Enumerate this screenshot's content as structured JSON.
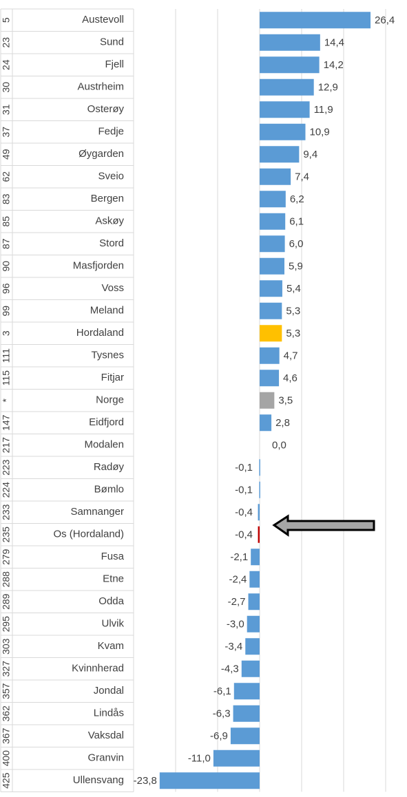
{
  "chart_data": {
    "type": "bar",
    "orientation": "horizontal",
    "ranks": [
      "5",
      "23",
      "24",
      "30",
      "31",
      "37",
      "49",
      "62",
      "83",
      "85",
      "87",
      "90",
      "96",
      "99",
      "3",
      "111",
      "115",
      "*",
      "147",
      "217",
      "223",
      "224",
      "233",
      "235",
      "279",
      "288",
      "289",
      "295",
      "303",
      "327",
      "357",
      "362",
      "367",
      "400",
      "425"
    ],
    "categories": [
      "Austevoll",
      "Sund",
      "Fjell",
      "Austrheim",
      "Osterøy",
      "Fedje",
      "Øygarden",
      "Sveio",
      "Bergen",
      "Askøy",
      "Stord",
      "Masfjorden",
      "Voss",
      "Meland",
      "Hordaland",
      "Tysnes",
      "Fitjar",
      "Norge",
      "Eidfjord",
      "Modalen",
      "Radøy",
      "Bømlo",
      "Samnanger",
      "Os (Hordaland)",
      "Fusa",
      "Etne",
      "Odda",
      "Ulvik",
      "Kvam",
      "Kvinnherad",
      "Jondal",
      "Lindås",
      "Vaksdal",
      "Granvin",
      "Ullensvang"
    ],
    "values": [
      26.4,
      14.4,
      14.2,
      12.9,
      11.9,
      10.9,
      9.4,
      7.4,
      6.2,
      6.1,
      6.0,
      5.9,
      5.4,
      5.3,
      5.3,
      4.7,
      4.6,
      3.5,
      2.8,
      0.0,
      -0.1,
      -0.1,
      -0.4,
      -0.4,
      -2.1,
      -2.4,
      -2.7,
      -3.0,
      -3.4,
      -4.3,
      -6.1,
      -6.3,
      -6.9,
      -11.0,
      -23.8
    ],
    "value_labels": [
      "26,4",
      "14,4",
      "14,2",
      "12,9",
      "11,9",
      "10,9",
      "9,4",
      "7,4",
      "6,2",
      "6,1",
      "6,0",
      "5,9",
      "5,4",
      "5,3",
      "5,3",
      "4,7",
      "4,6",
      "3,5",
      "2,8",
      "0,0",
      "-0,1",
      "-0,1",
      "-0,4",
      "-0,4",
      "-2,1",
      "-2,4",
      "-2,7",
      "-3,0",
      "-3,4",
      "-4,3",
      "-6,1",
      "-6,3",
      "-6,9",
      "-11,0",
      "-23,8"
    ],
    "color": "#5b9bd5",
    "colors": [
      "#5b9bd5",
      "#5b9bd5",
      "#5b9bd5",
      "#5b9bd5",
      "#5b9bd5",
      "#5b9bd5",
      "#5b9bd5",
      "#5b9bd5",
      "#5b9bd5",
      "#5b9bd5",
      "#5b9bd5",
      "#5b9bd5",
      "#5b9bd5",
      "#5b9bd5",
      "#ffc000",
      "#5b9bd5",
      "#5b9bd5",
      "#a5a5a5",
      "#5b9bd5",
      "#5b9bd5",
      "#5b9bd5",
      "#5b9bd5",
      "#5b9bd5",
      "#c00000",
      "#5b9bd5",
      "#5b9bd5",
      "#5b9bd5",
      "#5b9bd5",
      "#5b9bd5",
      "#5b9bd5",
      "#5b9bd5",
      "#5b9bd5",
      "#5b9bd5",
      "#5b9bd5",
      "#5b9bd5"
    ],
    "xlim": [
      -30,
      30
    ],
    "xticks": [
      -30,
      -20,
      -10,
      0,
      10,
      20,
      30
    ],
    "grid": true
  }
}
